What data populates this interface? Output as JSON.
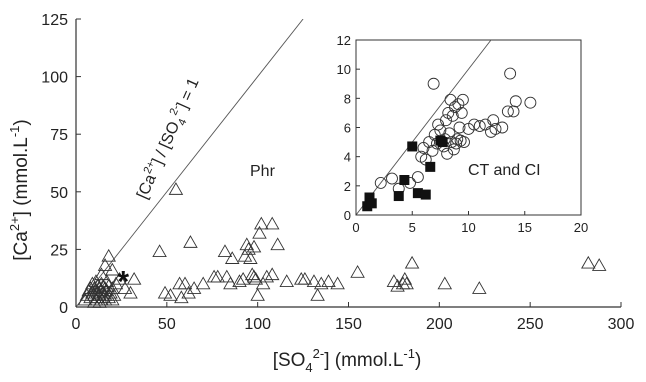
{
  "chart_data": [
    {
      "type": "scatter",
      "title": "",
      "xlabel": "[SO4^2-] (mmol.L^-1)",
      "ylabel": "[Ca^2+] (mmol.L^-1)",
      "xlim": [
        0,
        300
      ],
      "ylim": [
        0,
        125
      ],
      "xticks": [
        "0",
        "50",
        "100",
        "150",
        "200",
        "250",
        "300"
      ],
      "yticks": [
        "0",
        "25",
        "50",
        "75",
        "100",
        "125"
      ],
      "grid": false,
      "series": [
        {
          "marker": "open-triangle",
          "points": [
            [
              5,
              3
            ],
            [
              6,
              5
            ],
            [
              7,
              7
            ],
            [
              8,
              4
            ],
            [
              8,
              8
            ],
            [
              9,
              6
            ],
            [
              9,
              10
            ],
            [
              10,
              2
            ],
            [
              10,
              5
            ],
            [
              10,
              8
            ],
            [
              11,
              3
            ],
            [
              11,
              7
            ],
            [
              11,
              11
            ],
            [
              12,
              4
            ],
            [
              12,
              6
            ],
            [
              12,
              9
            ],
            [
              13,
              2
            ],
            [
              13,
              5
            ],
            [
              13,
              8
            ],
            [
              14,
              3
            ],
            [
              14,
              7
            ],
            [
              14,
              10
            ],
            [
              15,
              4
            ],
            [
              15,
              6
            ],
            [
              15,
              9
            ],
            [
              16,
              3
            ],
            [
              16,
              5
            ],
            [
              16,
              8
            ],
            [
              17,
              7
            ],
            [
              17,
              11
            ],
            [
              18,
              4
            ],
            [
              18,
              9
            ],
            [
              19,
              6
            ],
            [
              20,
              3
            ],
            [
              20,
              8
            ],
            [
              21,
              5
            ],
            [
              22,
              10
            ],
            [
              14,
              14
            ],
            [
              16,
              18
            ],
            [
              18,
              22
            ],
            [
              20,
              16
            ],
            [
              24,
              12
            ],
            [
              27,
              8
            ],
            [
              30,
              6
            ],
            [
              32,
              12
            ],
            [
              46,
              24
            ],
            [
              49,
              6
            ],
            [
              52,
              5
            ],
            [
              55,
              51
            ],
            [
              57,
              10
            ],
            [
              58,
              4
            ],
            [
              60,
              10
            ],
            [
              62,
              6
            ],
            [
              63,
              28
            ],
            [
              65,
              8
            ],
            [
              70,
              10
            ],
            [
              76,
              13
            ],
            [
              78,
              13
            ],
            [
              82,
              24
            ],
            [
              83,
              13
            ],
            [
              85,
              10
            ],
            [
              86,
              21
            ],
            [
              90,
              11
            ],
            [
              92,
              12
            ],
            [
              93,
              22
            ],
            [
              94,
              27
            ],
            [
              95,
              25
            ],
            [
              96,
              21
            ],
            [
              97,
              14
            ],
            [
              98,
              26
            ],
            [
              98,
              13
            ],
            [
              99,
              12
            ],
            [
              100,
              5
            ],
            [
              101,
              32
            ],
            [
              102,
              36
            ],
            [
              103,
              10
            ],
            [
              105,
              13
            ],
            [
              108,
              14
            ],
            [
              108,
              36
            ],
            [
              111,
              27
            ],
            [
              116,
              11
            ],
            [
              124,
              12
            ],
            [
              126,
              12
            ],
            [
              131,
              11
            ],
            [
              133,
              5
            ],
            [
              135,
              10
            ],
            [
              139,
              11
            ],
            [
              144,
              10
            ],
            [
              155,
              15
            ],
            [
              175,
              11
            ],
            [
              177,
              9
            ],
            [
              180,
              10
            ],
            [
              181,
              12
            ],
            [
              182,
              10
            ],
            [
              185,
              19
            ],
            [
              203,
              10
            ],
            [
              222,
              8
            ],
            [
              282,
              19
            ],
            [
              288,
              18
            ]
          ]
        },
        {
          "marker": "star",
          "points": [
            [
              26,
              12
            ]
          ]
        }
      ],
      "reference_line": {
        "label": "[Ca2+] / [SO42-] = 1",
        "from": [
          0,
          0
        ],
        "to": [
          125,
          125
        ]
      },
      "annotations": [
        "Phr"
      ]
    },
    {
      "type": "scatter",
      "title": "",
      "xlim": [
        0,
        20
      ],
      "ylim": [
        0,
        12
      ],
      "xticks": [
        "0",
        "5",
        "10",
        "15",
        "20"
      ],
      "yticks": [
        "0",
        "2",
        "4",
        "6",
        "8",
        "10",
        "12"
      ],
      "grid": false,
      "series": [
        {
          "marker": "open-circle",
          "points": [
            [
              2.2,
              2.2
            ],
            [
              3.2,
              2.5
            ],
            [
              3.8,
              1.8
            ],
            [
              4.8,
              2.2
            ],
            [
              5.5,
              2.6
            ],
            [
              5.8,
              4.0
            ],
            [
              6.0,
              4.6
            ],
            [
              6.2,
              3.8
            ],
            [
              6.5,
              5.0
            ],
            [
              6.8,
              4.4
            ],
            [
              6.9,
              9.0
            ],
            [
              7.0,
              5.5
            ],
            [
              7.2,
              4.9
            ],
            [
              7.3,
              6.2
            ],
            [
              7.5,
              5.8
            ],
            [
              7.8,
              4.7
            ],
            [
              7.9,
              5.2
            ],
            [
              8.0,
              6.5
            ],
            [
              8.1,
              4.2
            ],
            [
              8.2,
              7.0
            ],
            [
              8.3,
              5.6
            ],
            [
              8.4,
              7.9
            ],
            [
              8.5,
              5.0
            ],
            [
              8.6,
              6.8
            ],
            [
              8.7,
              4.5
            ],
            [
              8.8,
              7.4
            ],
            [
              8.9,
              4.9
            ],
            [
              9.0,
              5.2
            ],
            [
              9.1,
              7.6
            ],
            [
              9.2,
              6.0
            ],
            [
              9.3,
              5.1
            ],
            [
              9.4,
              7.0
            ],
            [
              9.5,
              7.9
            ],
            [
              9.6,
              5.0
            ],
            [
              10.0,
              5.9
            ],
            [
              11.0,
              6.1
            ],
            [
              11.5,
              6.2
            ],
            [
              12.0,
              5.7
            ],
            [
              12.2,
              6.5
            ],
            [
              12.4,
              5.9
            ],
            [
              13.0,
              6.0
            ],
            [
              13.5,
              7.1
            ],
            [
              13.7,
              9.7
            ],
            [
              14.0,
              7.1
            ],
            [
              15.5,
              7.7
            ],
            [
              14.2,
              7.8
            ],
            [
              10.5,
              6.2
            ]
          ]
        },
        {
          "marker": "filled-square",
          "points": [
            [
              1.0,
              0.6
            ],
            [
              1.2,
              1.2
            ],
            [
              1.4,
              0.8
            ],
            [
              3.8,
              1.3
            ],
            [
              4.3,
              2.4
            ],
            [
              5.0,
              4.7
            ],
            [
              5.5,
              1.5
            ],
            [
              6.2,
              1.4
            ],
            [
              6.6,
              3.3
            ],
            [
              7.5,
              5.1
            ],
            [
              7.7,
              5.0
            ]
          ]
        }
      ],
      "reference_line": {
        "from": [
          0,
          0
        ],
        "to": [
          12,
          12
        ]
      },
      "annotations": [
        "CT and CI"
      ]
    }
  ],
  "labels": {
    "phr": "Phr",
    "ct_ci": "CT and CI",
    "ratio_line": "[Ca2+] / [SO42-] = 1",
    "xlabel": "[SO42-] (mmol.L-1)",
    "ylabel": "[Ca2+] (mmol.L-1)"
  }
}
